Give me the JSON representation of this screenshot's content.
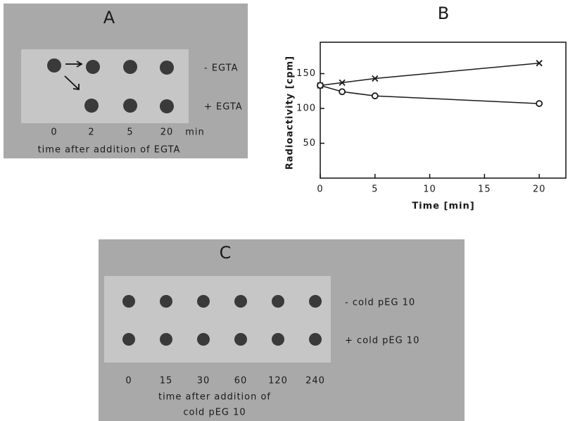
{
  "panel_a": {
    "title": "A",
    "rows": [
      "- EGTA",
      "+ EGTA"
    ],
    "lanes": [
      "0",
      "2",
      "5",
      "20"
    ],
    "unit": "min",
    "caption": "time after addition of EGTA"
  },
  "chart_data": {
    "type": "line",
    "title": "B",
    "xlabel": "Time [min]",
    "ylabel": "Radioactivity [cpm]",
    "series": [
      {
        "marker": "x",
        "color": "#1a1a1a",
        "x": [
          0,
          2,
          5,
          20
        ],
        "values": [
          133,
          137,
          143,
          165
        ]
      },
      {
        "marker": "o",
        "color": "#1a1a1a",
        "x": [
          0,
          2,
          5,
          20
        ],
        "values": [
          133,
          124,
          118,
          107
        ]
      }
    ],
    "xlim": [
      0,
      22.5
    ],
    "ylim": [
      0,
      195
    ],
    "xticks": [
      0,
      5,
      10,
      15,
      20
    ],
    "yticks": [
      50,
      100,
      150
    ]
  },
  "panel_c": {
    "title": "C",
    "rows": [
      "- cold pEG 10",
      "+ cold pEG 10"
    ],
    "lanes": [
      "0",
      "15",
      "30",
      "60",
      "120",
      "240"
    ],
    "caption": [
      "time after addition of",
      "cold pEG 10"
    ]
  }
}
